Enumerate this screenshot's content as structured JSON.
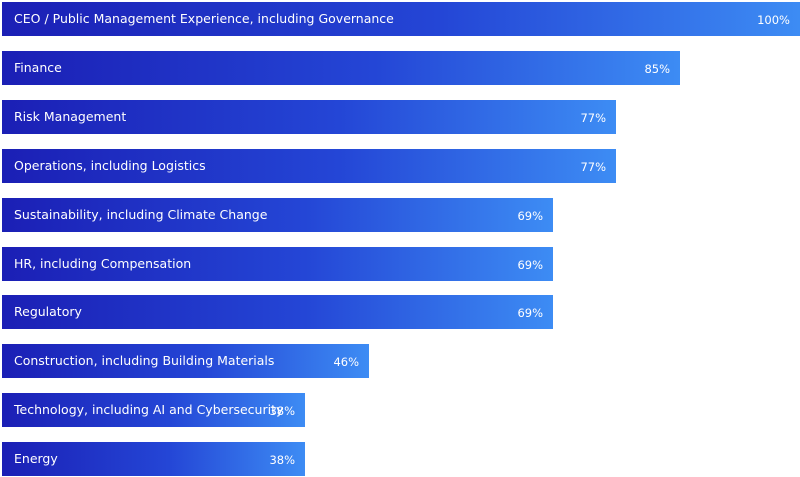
{
  "chart_data": {
    "type": "bar",
    "orientation": "horizontal",
    "title": "",
    "xlabel": "",
    "ylabel": "",
    "xlim": [
      0,
      100
    ],
    "grid": false,
    "legend": "none",
    "categories": [
      "CEO / Public Management Experience, including Governance",
      "Finance",
      "Risk Management",
      "Operations, including Logistics",
      "Sustainability, including Climate Change",
      "HR, including Compensation",
      "Regulatory",
      "Construction, including Building Materials",
      "Technology, including AI and Cybersecurity",
      "Energy"
    ],
    "values": [
      100,
      85,
      77,
      77,
      69,
      69,
      69,
      46,
      38,
      38
    ],
    "value_labels": [
      "100%",
      "85%",
      "77%",
      "77%",
      "69%",
      "69%",
      "69%",
      "46%",
      "38%",
      "38%"
    ],
    "colors": {
      "gradient_start": "#1b1fb5",
      "gradient_mid": "#2446d6",
      "gradient_end": "#3d8cf4",
      "text": "#ffffff"
    }
  }
}
